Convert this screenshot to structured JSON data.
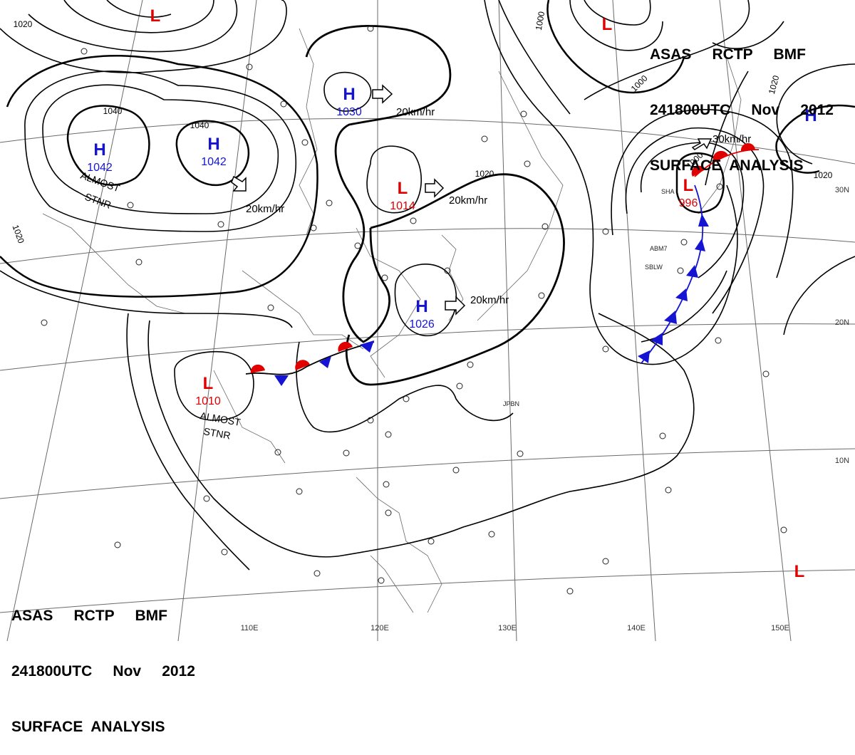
{
  "header": {
    "line1": "ASAS     RCTP     BMF",
    "line2": "241800UTC     Nov     2012",
    "line3": "SURFACE  ANALYSIS"
  },
  "colors": {
    "high": "#1414d2",
    "low": "#e00000",
    "isobar": "#000000",
    "grid": "#6a6a6a",
    "warm_front": "#e00000",
    "cold_front": "#1414d2"
  },
  "grid_labels": {
    "longitudes": [
      "110E",
      "120E",
      "130E",
      "140E",
      "150E"
    ],
    "latitudes": [
      "30N",
      "20N",
      "10N"
    ]
  },
  "pressure_systems": [
    {
      "type": "H",
      "value": "1042"
    },
    {
      "type": "H",
      "value": "1042"
    },
    {
      "type": "H",
      "value": "1030"
    },
    {
      "type": "H",
      "value": "1026"
    },
    {
      "type": "H",
      "value": ""
    },
    {
      "type": "L",
      "value": "1014"
    },
    {
      "type": "L",
      "value": "1010"
    },
    {
      "type": "L",
      "value": "996"
    },
    {
      "type": "L",
      "value": ""
    },
    {
      "type": "L",
      "value": ""
    },
    {
      "type": "L",
      "value": ""
    }
  ],
  "isobar_labels": [
    "1020",
    "1040",
    "1040",
    "1020",
    "1020",
    "1000",
    "1000",
    "1000",
    "1020",
    "1020"
  ],
  "motions": [
    "20km/hr",
    "20km/hr",
    "20km/hr",
    "20km/hr",
    "30km/hr"
  ],
  "annotations": [
    "ALMOST",
    "STNR",
    "ALMOST",
    "STNR"
  ],
  "station_ids": [
    "JPBN",
    "SBLW",
    "ABM7",
    "SHA"
  ]
}
